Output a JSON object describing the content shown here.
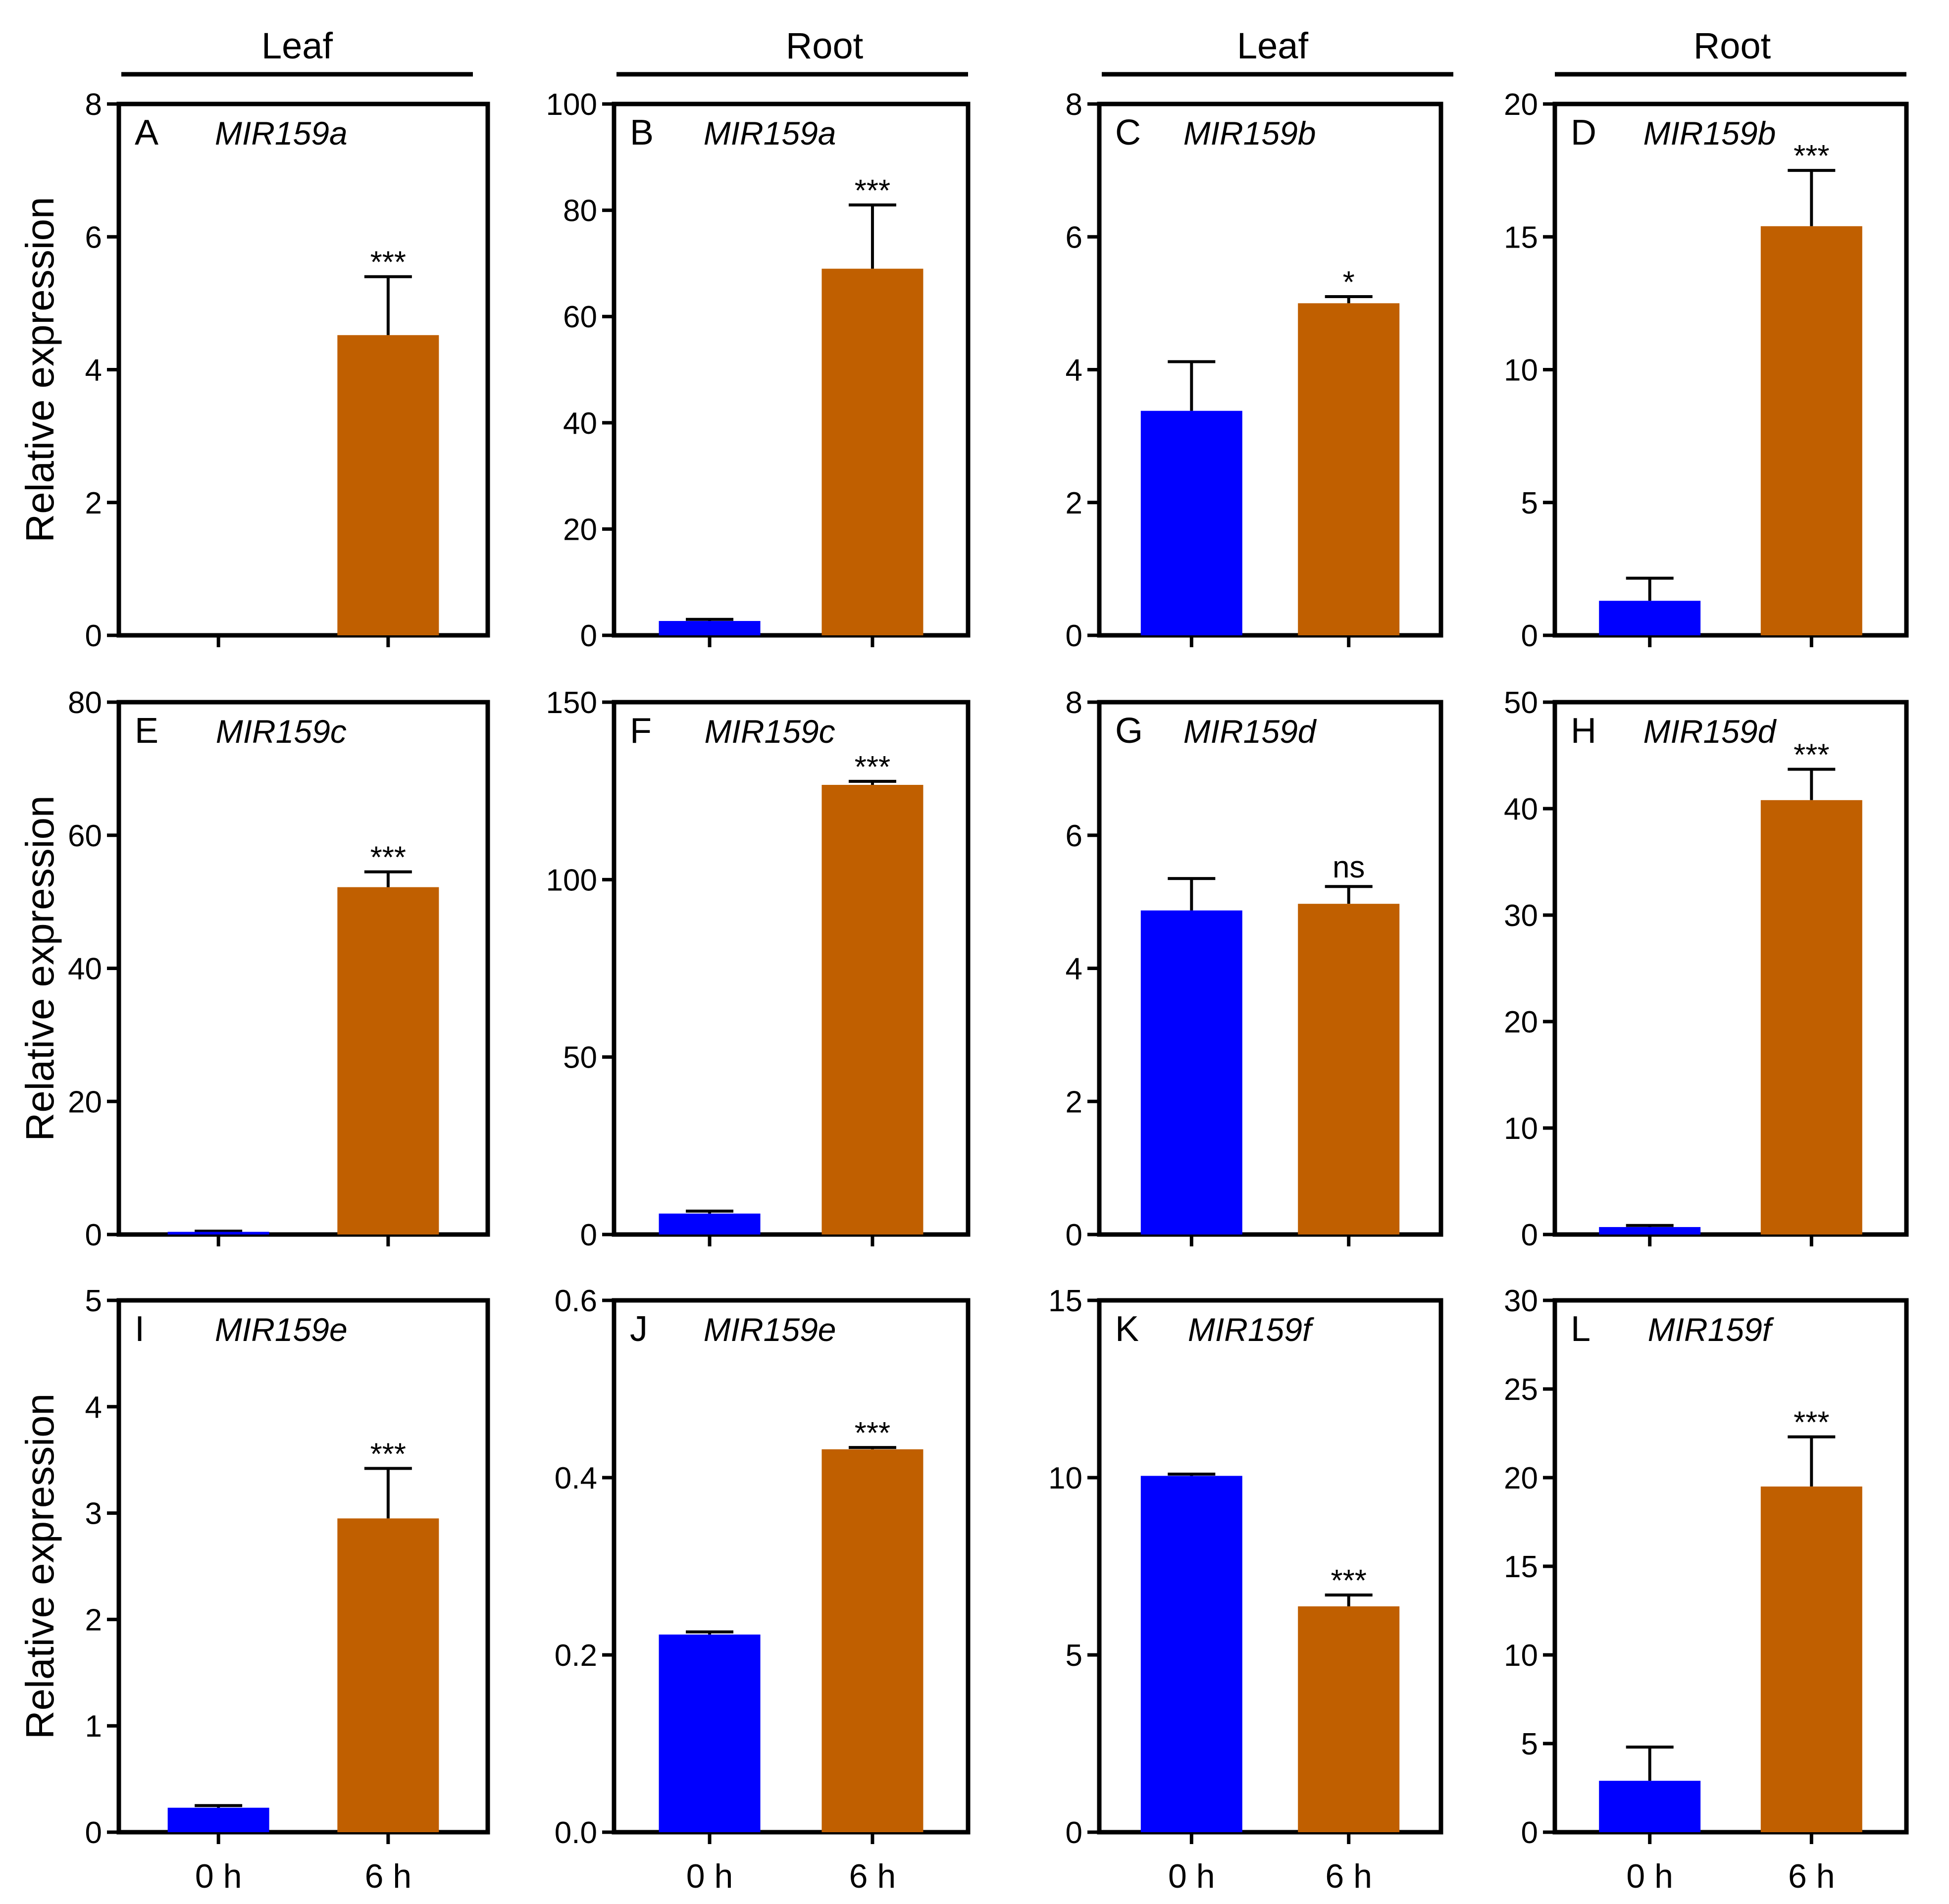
{
  "headers": [
    "Leaf",
    "Root",
    "Leaf",
    "Root"
  ],
  "ylabel": "Relative expression",
  "colors": {
    "c0": "#0000ff",
    "c6": "#c05f00"
  },
  "chart_data": [
    {
      "type": "bar",
      "panel": "A",
      "title": "MIR159a",
      "tissue": "Leaf",
      "categories": [
        "0 h",
        "6 h"
      ],
      "values": [
        0,
        4.52
      ],
      "errors": [
        0,
        0.88
      ],
      "significance": "***",
      "ylim": [
        0,
        8
      ],
      "yticks": [
        0,
        2,
        4,
        6,
        8
      ],
      "ylabel": "Relative expression"
    },
    {
      "type": "bar",
      "panel": "B",
      "title": "MIR159a",
      "tissue": "Root",
      "categories": [
        "0 h",
        "6 h"
      ],
      "values": [
        2.7,
        69
      ],
      "errors": [
        0.3,
        12
      ],
      "significance": "***",
      "ylim": [
        0,
        100
      ],
      "yticks": [
        0,
        20,
        40,
        60,
        80,
        100
      ]
    },
    {
      "type": "bar",
      "panel": "C",
      "title": "MIR159b",
      "tissue": "Leaf",
      "categories": [
        "0 h",
        "6 h"
      ],
      "values": [
        3.38,
        5.0
      ],
      "errors": [
        0.74,
        0.1
      ],
      "significance": "*",
      "ylim": [
        0,
        8
      ],
      "yticks": [
        0,
        2,
        4,
        6,
        8
      ]
    },
    {
      "type": "bar",
      "panel": "D",
      "title": "MIR159b",
      "tissue": "Root",
      "categories": [
        "0 h",
        "6 h"
      ],
      "values": [
        1.3,
        15.4
      ],
      "errors": [
        0.85,
        2.1
      ],
      "significance": "***",
      "ylim": [
        0,
        20
      ],
      "yticks": [
        0,
        5,
        10,
        15,
        20
      ]
    },
    {
      "type": "bar",
      "panel": "E",
      "title": "MIR159c",
      "tissue": "Leaf",
      "categories": [
        "0 h",
        "6 h"
      ],
      "values": [
        0.4,
        52.2
      ],
      "errors": [
        0.1,
        2.3
      ],
      "significance": "***",
      "ylim": [
        0,
        80
      ],
      "yticks": [
        0,
        20,
        40,
        60,
        80
      ],
      "ylabel": "Relative expression"
    },
    {
      "type": "bar",
      "panel": "F",
      "title": "MIR159c",
      "tissue": "Root",
      "categories": [
        "0 h",
        "6 h"
      ],
      "values": [
        5.9,
        126.7
      ],
      "errors": [
        0.7,
        1.0
      ],
      "significance": "***",
      "ylim": [
        0,
        150
      ],
      "yticks": [
        0,
        50,
        100,
        150
      ]
    },
    {
      "type": "bar",
      "panel": "G",
      "title": "MIR159d",
      "tissue": "Leaf",
      "categories": [
        "0 h",
        "6 h"
      ],
      "values": [
        4.87,
        4.97
      ],
      "errors": [
        0.48,
        0.26
      ],
      "significance": "ns",
      "ylim": [
        0,
        8
      ],
      "yticks": [
        0,
        2,
        4,
        6,
        8
      ]
    },
    {
      "type": "bar",
      "panel": "H",
      "title": "MIR159d",
      "tissue": "Root",
      "categories": [
        "0 h",
        "6 h"
      ],
      "values": [
        0.7,
        40.8
      ],
      "errors": [
        0.15,
        2.9
      ],
      "significance": "***",
      "ylim": [
        0,
        50
      ],
      "yticks": [
        0,
        10,
        20,
        30,
        40,
        50
      ]
    },
    {
      "type": "bar",
      "panel": "I",
      "title": "MIR159e",
      "tissue": "Leaf",
      "categories": [
        "0 h",
        "6 h"
      ],
      "values": [
        0.23,
        2.95
      ],
      "errors": [
        0.02,
        0.47
      ],
      "significance": "***",
      "ylim": [
        0,
        5
      ],
      "yticks": [
        0,
        1,
        2,
        3,
        4,
        5
      ],
      "ylabel": "Relative expression"
    },
    {
      "type": "bar",
      "panel": "J",
      "title": "MIR159e",
      "tissue": "Root",
      "categories": [
        "0 h",
        "6 h"
      ],
      "values": [
        0.223,
        0.432
      ],
      "errors": [
        0.003,
        0.002
      ],
      "significance": "***",
      "ylim": [
        0,
        0.6
      ],
      "yticks": [
        "0.0",
        "0.2",
        "0.4",
        "0.6"
      ]
    },
    {
      "type": "bar",
      "panel": "K",
      "title": "MIR159f",
      "tissue": "Leaf",
      "categories": [
        "0 h",
        "6 h"
      ],
      "values": [
        10.05,
        6.37
      ],
      "errors": [
        0.05,
        0.32
      ],
      "significance": "***",
      "ylim": [
        0,
        15
      ],
      "yticks": [
        0,
        5,
        10,
        15
      ]
    },
    {
      "type": "bar",
      "panel": "L",
      "title": "MIR159f",
      "tissue": "Root",
      "categories": [
        "0 h",
        "6 h"
      ],
      "values": [
        2.9,
        19.5
      ],
      "errors": [
        1.9,
        2.8
      ],
      "significance": "***",
      "ylim": [
        0,
        30
      ],
      "yticks": [
        0,
        5,
        10,
        15,
        20,
        25,
        30
      ]
    }
  ]
}
